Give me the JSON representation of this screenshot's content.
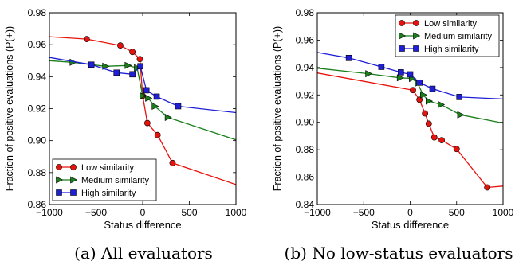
{
  "colors": {
    "low": "#e8120c",
    "medium": "#1a7f1a",
    "high": "#1f1fd6"
  },
  "chart_data": [
    {
      "type": "line",
      "caption": "(a) All evaluators",
      "xlabel": "Status difference",
      "ylabel": "Fraction of positive evaluations (P(+))",
      "xlim": [
        -1000,
        1000
      ],
      "ylim": [
        0.86,
        0.98
      ],
      "xticks": [
        "-1000",
        "-500",
        "0",
        "500",
        "1000"
      ],
      "yticks": [
        "0.86",
        "0.88",
        "0.90",
        "0.92",
        "0.94",
        "0.96",
        "0.98"
      ],
      "legend_position": "lower-left",
      "series": [
        {
          "name": "Low similarity",
          "marker": "circle",
          "color": "low",
          "x": [
            -1000,
            -600,
            -240,
            -110,
            -30,
            0,
            50,
            160,
            320,
            1000
          ],
          "y": [
            0.965,
            0.9635,
            0.9595,
            0.9555,
            0.951,
            0.928,
            0.911,
            0.9035,
            0.886,
            0.8725
          ],
          "markers": [
            1,
            2,
            3,
            4,
            5,
            6,
            7,
            8
          ]
        },
        {
          "name": "Medium similarity",
          "marker": "triangle-right",
          "color": "medium",
          "x": [
            -1000,
            -750,
            -400,
            -160,
            -60,
            0,
            60,
            130,
            270,
            1000
          ],
          "y": [
            0.95,
            0.949,
            0.9465,
            0.947,
            0.9455,
            0.928,
            0.9265,
            0.9215,
            0.9145,
            0.9005
          ],
          "markers": [
            1,
            2,
            3,
            4,
            5,
            6,
            7,
            8
          ]
        },
        {
          "name": "High similarity",
          "marker": "square",
          "color": "high",
          "x": [
            -1000,
            -550,
            -280,
            -110,
            -25,
            40,
            150,
            380,
            1000
          ],
          "y": [
            0.952,
            0.9475,
            0.9425,
            0.9415,
            0.9465,
            0.9315,
            0.9275,
            0.9215,
            0.9175
          ],
          "markers": [
            1,
            2,
            3,
            4,
            5,
            6,
            7
          ]
        }
      ]
    },
    {
      "type": "line",
      "caption": "(b) No low-status evaluators",
      "xlabel": "Status difference",
      "ylabel": "Fraction of positive evaluations (P(+))",
      "xlim": [
        -1000,
        1000
      ],
      "ylim": [
        0.84,
        0.98
      ],
      "xticks": [
        "-1000",
        "-500",
        "0",
        "500",
        "1000"
      ],
      "yticks": [
        "0.84",
        "0.86",
        "0.88",
        "0.90",
        "0.92",
        "0.94",
        "0.96",
        "0.98"
      ],
      "legend_position": "top-right",
      "series": [
        {
          "name": "Low similarity",
          "marker": "circle",
          "color": "low",
          "x": [
            -1000,
            30,
            100,
            160,
            200,
            260,
            340,
            500,
            830,
            1000
          ],
          "y": [
            0.936,
            0.9235,
            0.9165,
            0.9065,
            0.899,
            0.889,
            0.887,
            0.8805,
            0.8525,
            0.8535
          ],
          "markers": [
            1,
            2,
            3,
            4,
            5,
            6,
            7,
            8
          ]
        },
        {
          "name": "Medium similarity",
          "marker": "triangle-right",
          "color": "medium",
          "x": [
            -1000,
            -450,
            -110,
            20,
            80,
            140,
            200,
            330,
            540,
            1000
          ],
          "y": [
            0.9395,
            0.9355,
            0.9325,
            0.932,
            0.9285,
            0.92,
            0.9155,
            0.913,
            0.9055,
            0.8995
          ],
          "markers": [
            1,
            2,
            3,
            4,
            5,
            6,
            7,
            8
          ]
        },
        {
          "name": "High similarity",
          "marker": "square",
          "color": "high",
          "x": [
            -1000,
            -660,
            -310,
            -100,
            0,
            100,
            240,
            530,
            1000
          ],
          "y": [
            0.951,
            0.947,
            0.9405,
            0.9365,
            0.935,
            0.929,
            0.9245,
            0.9185,
            0.917
          ],
          "markers": [
            1,
            2,
            3,
            4,
            5,
            6,
            7
          ]
        }
      ]
    }
  ]
}
